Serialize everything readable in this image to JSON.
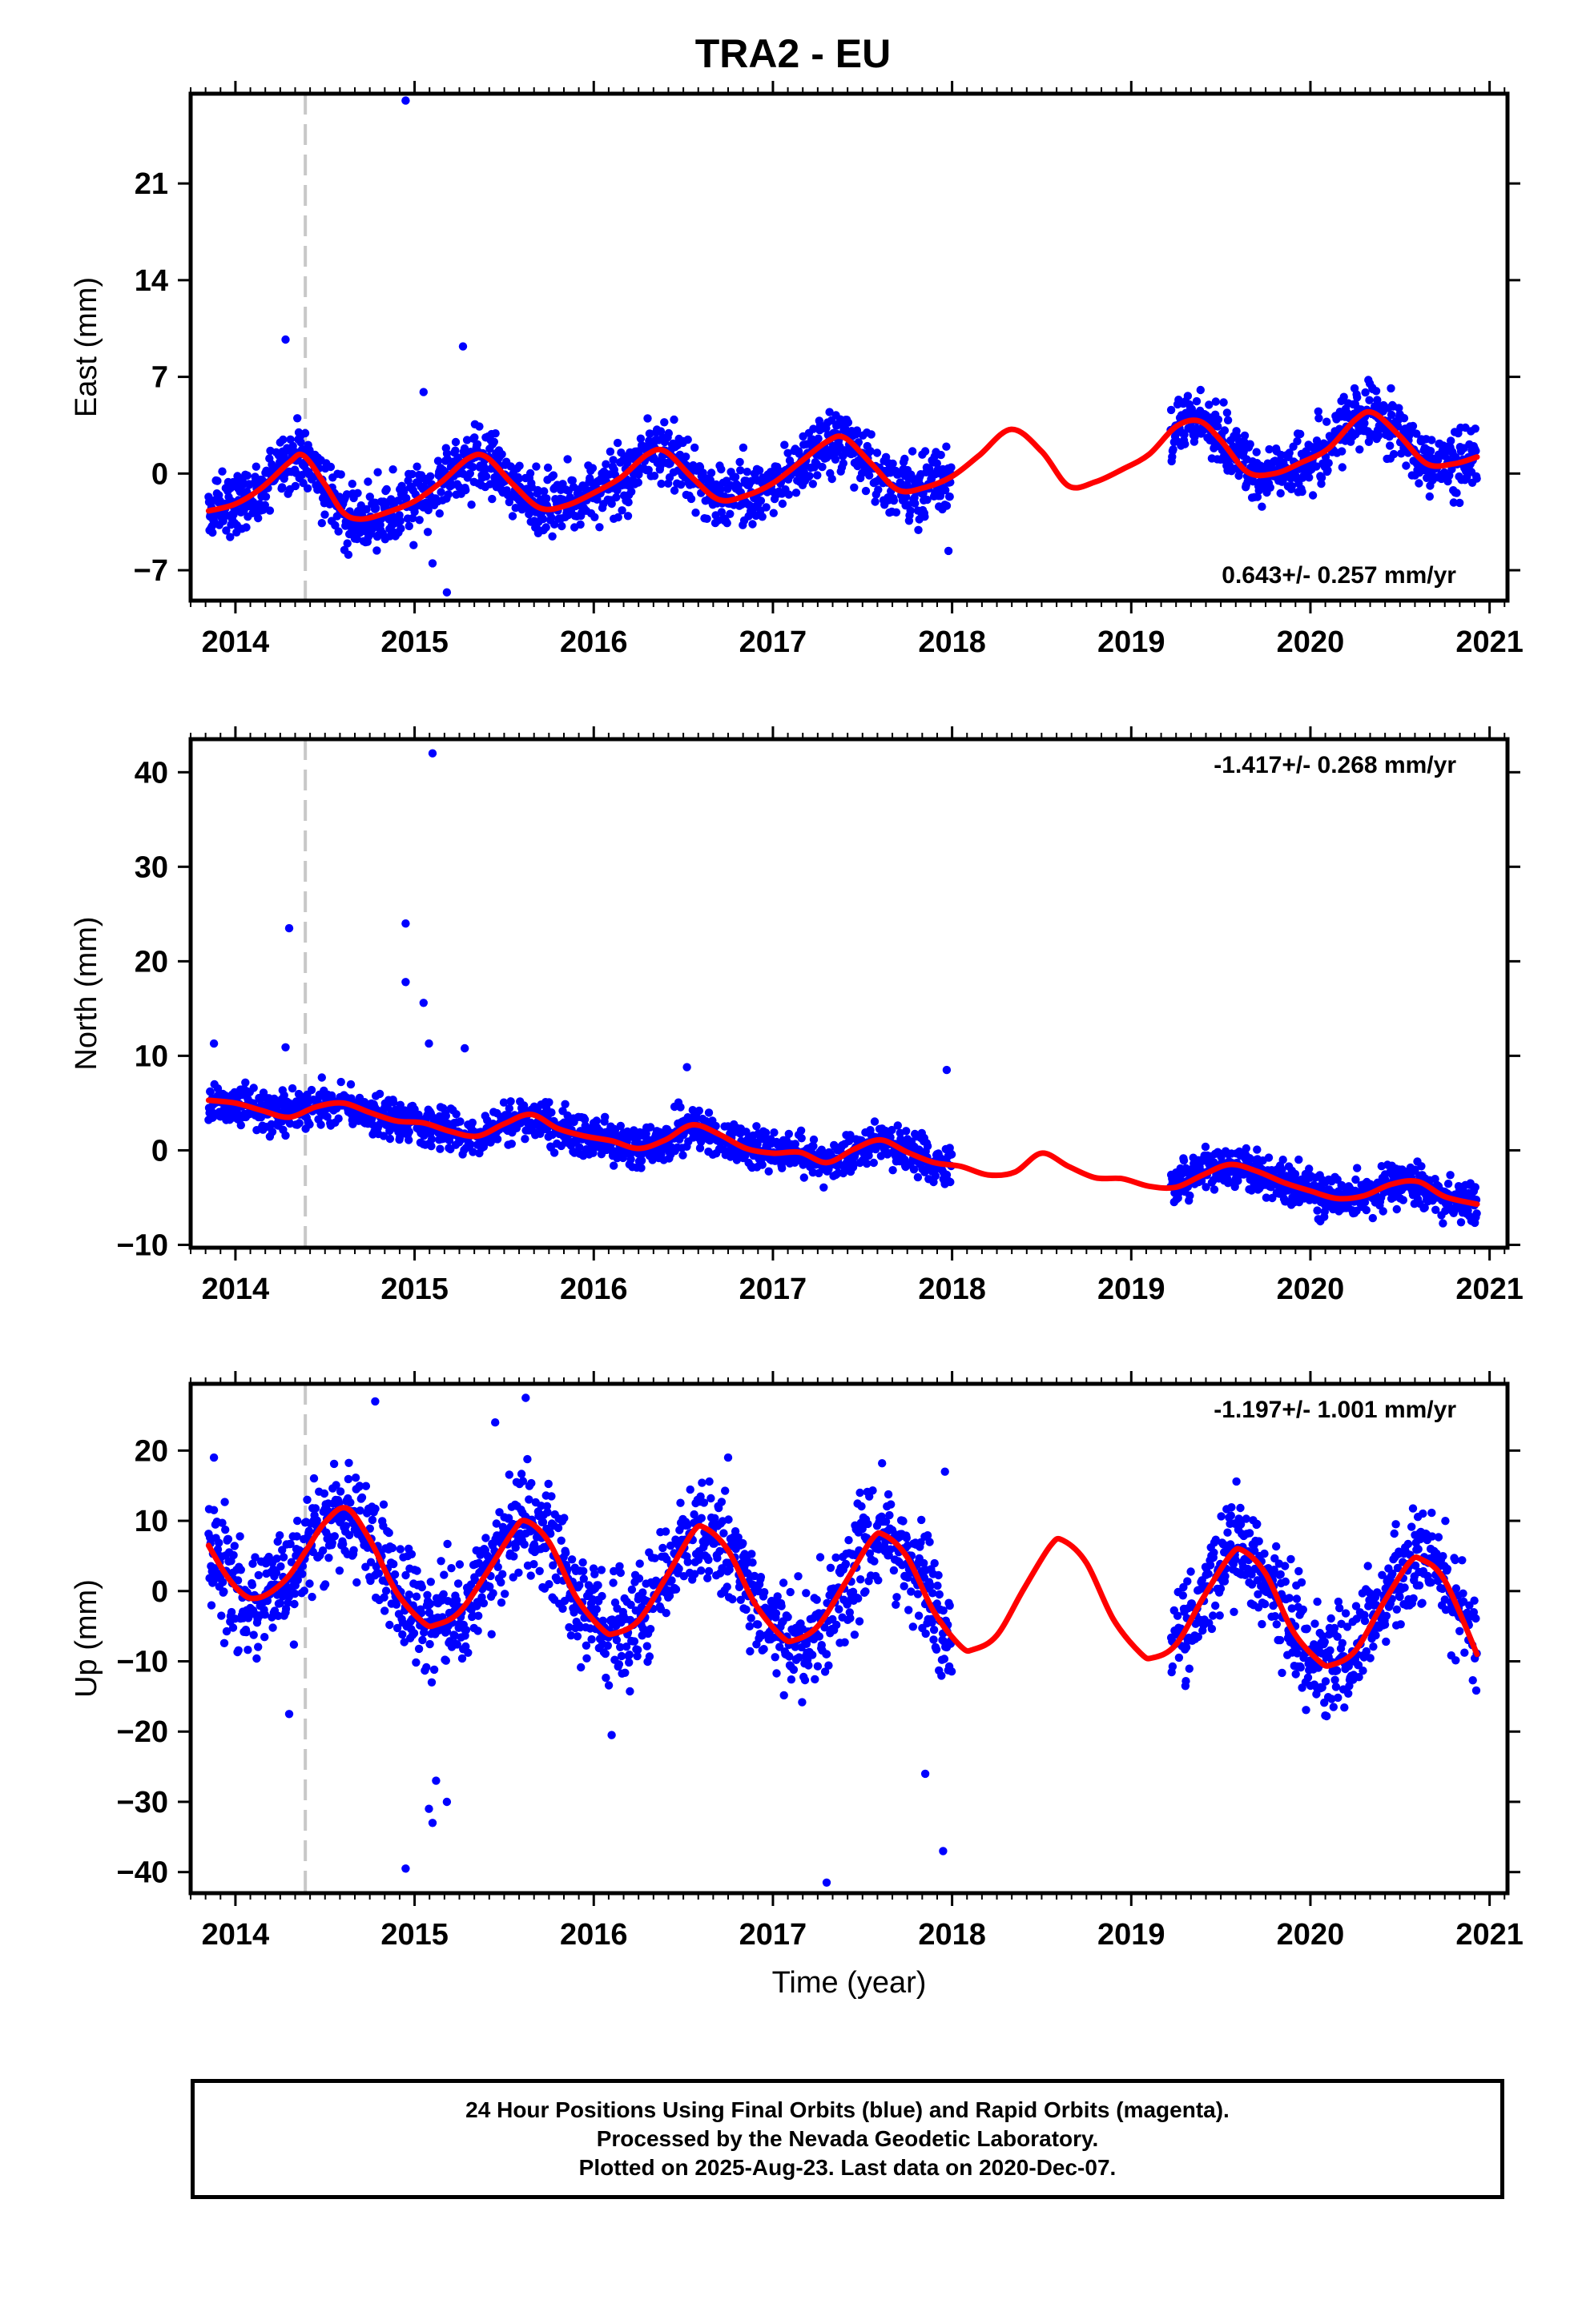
{
  "chart_data": {
    "type": "scatter",
    "title": "TRA2 - EU",
    "xlabel": "Time (year)",
    "xticks": [
      "2014",
      "2015",
      "2016",
      "2017",
      "2018",
      "2019",
      "2020",
      "2021"
    ],
    "xlim": [
      2013.75,
      2021.1
    ],
    "marker_line_x": 2014.39,
    "colors": {
      "points": "#0000ff",
      "model": "#ff0000",
      "marker_line": "#c8c8c8"
    },
    "panels": [
      {
        "name": "east",
        "ylabel": "East (mm)",
        "ylim": [
          -9.2,
          27.5
        ],
        "yticks": [
          "-7",
          "0",
          "7",
          "14",
          "21"
        ],
        "rate_label": "0.643+/- 0.257 mm/yr",
        "rate_label_position": "bottom-right",
        "model": {
          "x": [
            2013.85,
            2014.0,
            2014.15,
            2014.3,
            2014.38,
            2014.5,
            2014.6,
            2014.7,
            2014.85,
            2015.0,
            2015.15,
            2015.3,
            2015.4,
            2015.55,
            2015.7,
            2015.85,
            2016.0,
            2016.15,
            2016.3,
            2016.4,
            2016.55,
            2016.7,
            2016.85,
            2017.0,
            2017.15,
            2017.3,
            2017.4,
            2017.55,
            2017.7,
            2017.85,
            2018.0,
            2018.15,
            2018.33,
            2018.5,
            2018.65,
            2018.8,
            2018.95,
            2019.1,
            2019.25,
            2019.38,
            2019.5,
            2019.65,
            2019.8,
            2019.95,
            2020.1,
            2020.25,
            2020.35,
            2020.5,
            2020.65,
            2020.8,
            2020.93
          ],
          "y": [
            -2.7,
            -2.2,
            -1.0,
            0.8,
            1.3,
            -0.8,
            -2.8,
            -3.3,
            -2.8,
            -2.0,
            -0.6,
            1.1,
            1.2,
            -0.8,
            -2.5,
            -2.3,
            -1.4,
            -0.3,
            1.4,
            1.6,
            -0.3,
            -1.9,
            -1.6,
            -0.7,
            0.8,
            2.3,
            2.6,
            0.7,
            -1.2,
            -1.0,
            -0.2,
            1.3,
            3.2,
            1.6,
            -0.9,
            -0.6,
            0.3,
            1.4,
            3.4,
            3.8,
            2.4,
            0.1,
            0.0,
            0.8,
            1.8,
            3.9,
            4.4,
            2.7,
            0.7,
            0.7,
            1.2
          ],
          "data_end": 2020.93
        },
        "scatter": {
          "seed": 101,
          "amp": 1.15,
          "segments": [
            [
              2013.85,
              2018.0
            ],
            [
              2019.22,
              2020.93
            ]
          ]
        },
        "outliers": [
          [
            2014.95,
            27.0
          ],
          [
            2014.28,
            9.7
          ],
          [
            2015.27,
            9.2
          ],
          [
            2015.05,
            5.9
          ],
          [
            2015.18,
            -8.6
          ],
          [
            2015.1,
            -6.5
          ],
          [
            2017.98,
            -5.6
          ]
        ]
      },
      {
        "name": "north",
        "ylabel": "North (mm)",
        "ylim": [
          -10.3,
          43.5
        ],
        "yticks": [
          "-10",
          "0",
          "10",
          "20",
          "30",
          "40"
        ],
        "rate_label": "-1.417+/- 0.268 mm/yr",
        "rate_label_position": "top-right",
        "model": {
          "x": [
            2013.85,
            2014.0,
            2014.15,
            2014.3,
            2014.45,
            2014.6,
            2014.75,
            2014.9,
            2015.05,
            2015.2,
            2015.35,
            2015.5,
            2015.65,
            2015.8,
            2015.95,
            2016.1,
            2016.25,
            2016.4,
            2016.55,
            2016.7,
            2016.85,
            2017.0,
            2017.15,
            2017.3,
            2017.45,
            2017.6,
            2017.75,
            2017.9,
            2018.05,
            2018.2,
            2018.35,
            2018.5,
            2018.65,
            2018.8,
            2018.95,
            2019.1,
            2019.25,
            2019.4,
            2019.55,
            2019.7,
            2019.85,
            2020.0,
            2020.15,
            2020.3,
            2020.45,
            2020.6,
            2020.75,
            2020.93
          ],
          "y": [
            5.3,
            5.0,
            4.2,
            3.5,
            4.6,
            5.0,
            4.0,
            3.1,
            2.9,
            2.0,
            1.5,
            2.8,
            3.8,
            2.3,
            1.5,
            1.0,
            0.2,
            1.1,
            2.7,
            1.7,
            0.2,
            -0.3,
            -0.2,
            -1.3,
            0.1,
            1.1,
            -0.2,
            -1.3,
            -1.7,
            -2.6,
            -2.3,
            -0.3,
            -1.7,
            -2.9,
            -3.0,
            -3.8,
            -3.9,
            -2.6,
            -1.5,
            -2.2,
            -3.4,
            -4.3,
            -5.1,
            -4.8,
            -3.6,
            -3.3,
            -4.9,
            -5.7
          ],
          "data_end": 2020.93
        },
        "scatter": {
          "seed": 202,
          "amp": 1.1,
          "segments": [
            [
              2013.85,
              2018.0
            ],
            [
              2019.22,
              2020.93
            ]
          ]
        },
        "outliers": [
          [
            2015.1,
            42.0
          ],
          [
            2014.3,
            23.5
          ],
          [
            2014.95,
            24.0
          ],
          [
            2014.95,
            17.8
          ],
          [
            2015.05,
            15.6
          ],
          [
            2015.08,
            11.3
          ],
          [
            2015.28,
            10.8
          ],
          [
            2014.28,
            10.9
          ],
          [
            2013.88,
            11.3
          ],
          [
            2017.97,
            8.5
          ],
          [
            2016.52,
            8.8
          ]
        ]
      },
      {
        "name": "up",
        "ylabel": "Up (mm)",
        "ylim": [
          -43.0,
          29.5
        ],
        "yticks": [
          "-40",
          "-30",
          "-20",
          "-10",
          "0",
          "10",
          "20"
        ],
        "rate_label": "-1.197+/- 1.001 mm/yr",
        "rate_label_position": "top-right",
        "model": {
          "x": [
            2013.85,
            2013.95,
            2014.05,
            2014.12,
            2014.2,
            2014.3,
            2014.4,
            2014.5,
            2014.62,
            2014.75,
            2014.9,
            2015.05,
            2015.12,
            2015.25,
            2015.4,
            2015.55,
            2015.62,
            2015.75,
            2015.9,
            2016.05,
            2016.12,
            2016.25,
            2016.4,
            2016.55,
            2016.62,
            2016.75,
            2016.9,
            2017.05,
            2017.12,
            2017.25,
            2017.4,
            2017.55,
            2017.62,
            2017.75,
            2017.9,
            2018.05,
            2018.12,
            2018.25,
            2018.4,
            2018.55,
            2018.62,
            2018.75,
            2018.9,
            2019.05,
            2019.12,
            2019.25,
            2019.4,
            2019.55,
            2019.62,
            2019.75,
            2019.9,
            2020.05,
            2020.12,
            2020.25,
            2020.4,
            2020.55,
            2020.62,
            2020.75,
            2020.93
          ],
          "y": [
            6.5,
            2.2,
            -0.6,
            -1.0,
            -0.1,
            2.2,
            6.0,
            9.8,
            11.8,
            7.3,
            -0.2,
            -4.5,
            -4.8,
            -3.0,
            2.5,
            8.5,
            10.0,
            7.0,
            -0.8,
            -5.5,
            -6.0,
            -4.2,
            1.8,
            8.3,
            9.0,
            5.8,
            -1.8,
            -6.5,
            -7.0,
            -5.0,
            1.0,
            7.3,
            8.0,
            4.8,
            -3.0,
            -7.9,
            -8.3,
            -6.3,
            0.3,
            6.5,
            7.2,
            4.0,
            -4.0,
            -8.8,
            -9.5,
            -7.6,
            -1.0,
            5.0,
            5.8,
            2.5,
            -5.6,
            -10.0,
            -10.5,
            -8.5,
            -2.0,
            4.0,
            4.5,
            1.5,
            -9.0
          ],
          "data_end": 2020.93
        },
        "scatter": {
          "seed": 303,
          "amp": 3.8,
          "segments": [
            [
              2013.85,
              2018.0
            ],
            [
              2019.22,
              2020.93
            ]
          ]
        },
        "outliers": [
          [
            2014.78,
            27.0
          ],
          [
            2015.62,
            27.5
          ],
          [
            2015.45,
            24.0
          ],
          [
            2017.3,
            -41.5
          ],
          [
            2014.95,
            -39.5
          ],
          [
            2017.95,
            -37.0
          ],
          [
            2015.1,
            -33.0
          ],
          [
            2015.08,
            -31.0
          ],
          [
            2015.18,
            -30.0
          ],
          [
            2015.12,
            -27.0
          ],
          [
            2017.85,
            -26.0
          ],
          [
            2014.3,
            -17.5
          ],
          [
            2016.1,
            -20.5
          ],
          [
            2013.88,
            19.0
          ],
          [
            2016.75,
            19.0
          ],
          [
            2017.96,
            17.0
          ]
        ]
      }
    ]
  },
  "footer": {
    "line1": "24 Hour Positions Using Final Orbits (blue) and Rapid Orbits (magenta).",
    "line2": "Processed by the Nevada Geodetic Laboratory.",
    "line3": "Plotted on 2025-Aug-23. Last data on 2020-Dec-07."
  }
}
